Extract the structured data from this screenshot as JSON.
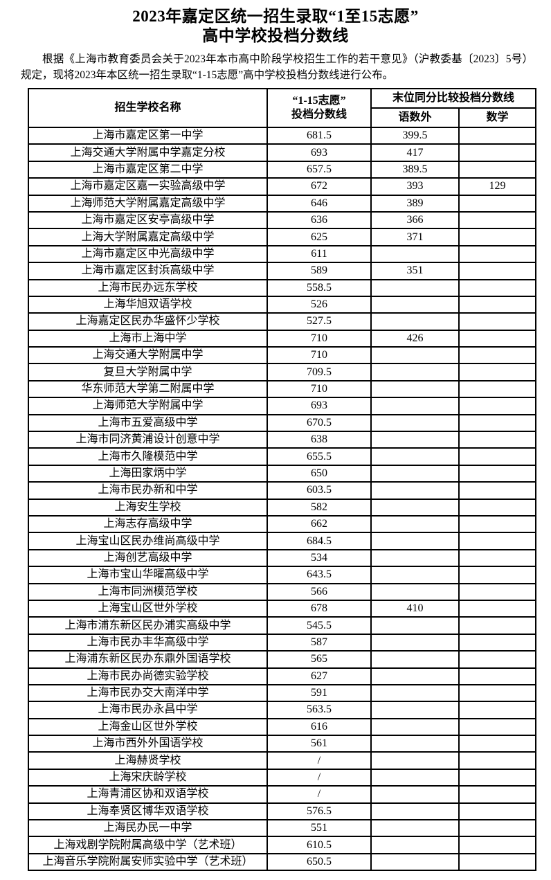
{
  "title": {
    "line1": "2023年嘉定区统一招生录取“1至15志愿”",
    "line2": "高中学校投档分数线"
  },
  "intro": "根据《上海市教育委员会关于2023年本市高中阶段学校招生工作的若干意见》（沪教委基〔2023〕5号）规定，现将2023年本区统一招生录取“1-15志愿”高中学校投档分数线进行公布。",
  "table": {
    "headers": {
      "school": "招生学校名称",
      "score_line1": "“1-15志愿”",
      "score_line2": "投档分数线",
      "tiebreak": "末位同分比较投档分数线",
      "tiebreak_sub1": "语数外",
      "tiebreak_sub2": "数学"
    },
    "rows": [
      {
        "name": "上海市嘉定区第一中学",
        "score": "681.5",
        "ywf": "399.5",
        "math": ""
      },
      {
        "name": "上海交通大学附属中学嘉定分校",
        "score": "693",
        "ywf": "417",
        "math": ""
      },
      {
        "name": "上海市嘉定区第二中学",
        "score": "657.5",
        "ywf": "389.5",
        "math": ""
      },
      {
        "name": "上海市嘉定区嘉一实验高级中学",
        "score": "672",
        "ywf": "393",
        "math": "129"
      },
      {
        "name": "上海师范大学附属嘉定高级中学",
        "score": "646",
        "ywf": "389",
        "math": ""
      },
      {
        "name": "上海市嘉定区安亭高级中学",
        "score": "636",
        "ywf": "366",
        "math": ""
      },
      {
        "name": "上海大学附属嘉定高级中学",
        "score": "625",
        "ywf": "371",
        "math": ""
      },
      {
        "name": "上海市嘉定区中光高级中学",
        "score": "611",
        "ywf": "",
        "math": ""
      },
      {
        "name": "上海市嘉定区封浜高级中学",
        "score": "589",
        "ywf": "351",
        "math": ""
      },
      {
        "name": "上海市民办远东学校",
        "score": "558.5",
        "ywf": "",
        "math": ""
      },
      {
        "name": "上海华旭双语学校",
        "score": "526",
        "ywf": "",
        "math": ""
      },
      {
        "name": "上海嘉定区民办华盛怀少学校",
        "score": "527.5",
        "ywf": "",
        "math": ""
      },
      {
        "name": "上海市上海中学",
        "score": "710",
        "ywf": "426",
        "math": ""
      },
      {
        "name": "上海交通大学附属中学",
        "score": "710",
        "ywf": "",
        "math": ""
      },
      {
        "name": "复旦大学附属中学",
        "score": "709.5",
        "ywf": "",
        "math": ""
      },
      {
        "name": "华东师范大学第二附属中学",
        "score": "710",
        "ywf": "",
        "math": ""
      },
      {
        "name": "上海师范大学附属中学",
        "score": "693",
        "ywf": "",
        "math": ""
      },
      {
        "name": "上海市五爱高级中学",
        "score": "670.5",
        "ywf": "",
        "math": ""
      },
      {
        "name": "上海市同济黄浦设计创意中学",
        "score": "638",
        "ywf": "",
        "math": ""
      },
      {
        "name": "上海市久隆模范中学",
        "score": "655.5",
        "ywf": "",
        "math": ""
      },
      {
        "name": "上海田家炳中学",
        "score": "650",
        "ywf": "",
        "math": ""
      },
      {
        "name": "上海市民办新和中学",
        "score": "603.5",
        "ywf": "",
        "math": ""
      },
      {
        "name": "上海安生学校",
        "score": "582",
        "ywf": "",
        "math": ""
      },
      {
        "name": "上海志存高级中学",
        "score": "662",
        "ywf": "",
        "math": ""
      },
      {
        "name": "上海宝山区民办维尚高级中学",
        "score": "684.5",
        "ywf": "",
        "math": ""
      },
      {
        "name": "上海创艺高级中学",
        "score": "534",
        "ywf": "",
        "math": ""
      },
      {
        "name": "上海市宝山华曜高级中学",
        "score": "643.5",
        "ywf": "",
        "math": ""
      },
      {
        "name": "上海市同洲模范学校",
        "score": "566",
        "ywf": "",
        "math": ""
      },
      {
        "name": "上海宝山区世外学校",
        "score": "678",
        "ywf": "410",
        "math": ""
      },
      {
        "name": "上海市浦东新区民办浦实高级中学",
        "score": "545.5",
        "ywf": "",
        "math": ""
      },
      {
        "name": "上海市民办丰华高级中学",
        "score": "587",
        "ywf": "",
        "math": ""
      },
      {
        "name": "上海浦东新区民办东鼎外国语学校",
        "score": "565",
        "ywf": "",
        "math": ""
      },
      {
        "name": "上海市民办尚德实验学校",
        "score": "627",
        "ywf": "",
        "math": ""
      },
      {
        "name": "上海市民办交大南洋中学",
        "score": "591",
        "ywf": "",
        "math": ""
      },
      {
        "name": "上海市民办永昌中学",
        "score": "563.5",
        "ywf": "",
        "math": ""
      },
      {
        "name": "上海金山区世外学校",
        "score": "616",
        "ywf": "",
        "math": ""
      },
      {
        "name": "上海市西外外国语学校",
        "score": "561",
        "ywf": "",
        "math": ""
      },
      {
        "name": "上海赫贤学校",
        "score": "/",
        "ywf": "",
        "math": ""
      },
      {
        "name": "上海宋庆龄学校",
        "score": "/",
        "ywf": "",
        "math": ""
      },
      {
        "name": "上海青浦区协和双语学校",
        "score": "/",
        "ywf": "",
        "math": ""
      },
      {
        "name": "上海奉贤区博华双语学校",
        "score": "576.5",
        "ywf": "",
        "math": ""
      },
      {
        "name": "上海民办民一中学",
        "score": "551",
        "ywf": "",
        "math": ""
      },
      {
        "name": "上海戏剧学院附属高级中学（艺术班）",
        "score": "610.5",
        "ywf": "",
        "math": ""
      },
      {
        "name": "上海音乐学院附属安师实验中学（艺术班）",
        "score": "650.5",
        "ywf": "",
        "math": ""
      }
    ]
  }
}
